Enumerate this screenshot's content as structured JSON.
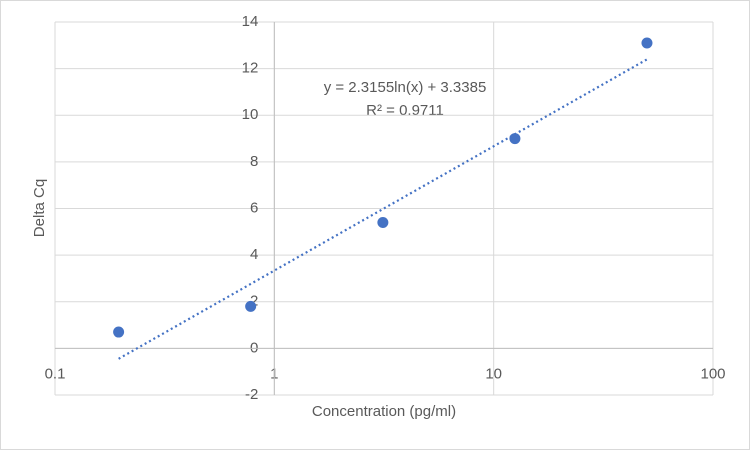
{
  "chart_data": {
    "type": "scatter",
    "x_label": "Concentration (pg/ml)",
    "y_label": "Delta Cq",
    "x": [
      0.195,
      0.78,
      3.125,
      12.5,
      50
    ],
    "values": [
      0.7,
      1.8,
      5.4,
      9.0,
      13.1
    ],
    "color": "#4472c4",
    "xlog": true,
    "xlim": [
      0.1,
      100
    ],
    "xticks": [
      0.1,
      1,
      10,
      100
    ],
    "ylim": [
      -2,
      14
    ],
    "yticks": [
      -2,
      0,
      2,
      4,
      6,
      8,
      10,
      12,
      14
    ],
    "grid": true,
    "trendline": {
      "type": "log",
      "slope": 2.3155,
      "intercept": 3.3385,
      "label": "y = 2.3155ln(x) + 3.3385",
      "r2_label": "R² = 0.9711"
    }
  }
}
